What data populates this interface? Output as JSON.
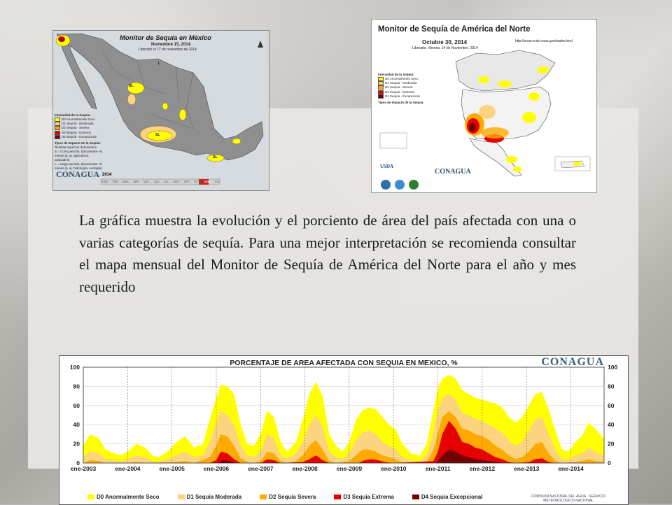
{
  "colors": {
    "d0": "#ffff00",
    "d1": "#fcd37f",
    "d2": "#ffaa00",
    "d3": "#e60000",
    "d4": "#730000"
  },
  "map_mexico": {
    "title": "Monitor de Sequía en México",
    "date": "Noviembre 15, 2014",
    "released": "Liberado el 17 de noviembre de 2014",
    "legend_heading": "Intensidad de la Sequía:",
    "legend": [
      "D0 Anormalmente Seco",
      "D1 Sequía - Moderada",
      "D2 Sequía - Severa",
      "D3 Sequía - Extrema",
      "D4 Sequía - Excepcional"
    ],
    "impact_heading": "Tipos de Impacto de la Sequía:",
    "impacts": [
      "Delimita impactos dominantes",
      "S = Corto periodo, típicamente <6 meses (p. ej. agricultura, pastizales)",
      "L = Largo periodo, típicamente >6 meses (p. ej. hidrología, ecología)"
    ],
    "year": "2014",
    "months": [
      "ENE",
      "FEB",
      "MAR",
      "ABR",
      "MAY",
      "JUN",
      "JUL",
      "AGO",
      "SEP",
      "OCT",
      "NOV",
      "DIC"
    ],
    "logo": "CONAGUA",
    "labels": [
      "SL",
      "SL",
      "L",
      "SL",
      "SL"
    ]
  },
  "map_na": {
    "title": "Monitor de Sequía de América del Norte",
    "date": "Octubre 30, 2014",
    "released": "Liberado: Viernes, 14 de Noviembre, 2014",
    "url": "http://www.ncdc.noaa.gov/nadm.html",
    "legend_heading": "Intensidad de la Sequía:",
    "legend": [
      "D0 Anormalmente Seco",
      "D1 Sequía - Moderada",
      "D2 Sequía - Severa",
      "D3 Sequía - Extrema",
      "D4 Sequía - Excepcional"
    ],
    "impact_heading": "Tipos de Impacto de la Sequía:",
    "logo": "CONAGUA",
    "logo_usda": "USDA"
  },
  "description": "La gráfica muestra la evolución y el porciento de área del país afectada con una o varias categorías de sequía. Para una mejor interpretación se recomienda consultar el mapa mensual del Monitor de Sequía de América del Norte para el año y mes requerido",
  "chart_data": {
    "type": "area",
    "title": "PORCENTAJE DE AREA AFECTADA CON SEQUIA EN MEXICO, %",
    "brand": "CONAGUA",
    "org": "COMISION NACIONAL DEL AGUA · SERVICIO METEOROLOGICO NACIONAL",
    "ylim": [
      0,
      100
    ],
    "yticks": [
      0,
      20,
      40,
      60,
      80,
      100
    ],
    "x_ticks": [
      "ene-2003",
      "ene-2004",
      "ene-2005",
      "ene-2006",
      "ene-2007",
      "ene-2008",
      "ene-2009",
      "ene-2010",
      "ene-2011",
      "ene-2012",
      "ene-2013",
      "ene-2014"
    ],
    "x_start": 2003.0,
    "x_end": 2014.75,
    "grid": true,
    "legend_position": "bottom",
    "series": [
      {
        "name": "D0 Anormalmente Seco",
        "color_key": "d0",
        "points": [
          [
            2003.0,
            18
          ],
          [
            2003.15,
            30
          ],
          [
            2003.35,
            26
          ],
          [
            2003.5,
            14
          ],
          [
            2003.7,
            10
          ],
          [
            2003.85,
            8
          ],
          [
            2004.0,
            12
          ],
          [
            2004.2,
            20
          ],
          [
            2004.4,
            16
          ],
          [
            2004.55,
            8
          ],
          [
            2004.7,
            6
          ],
          [
            2004.9,
            12
          ],
          [
            2005.1,
            22
          ],
          [
            2005.3,
            28
          ],
          [
            2005.5,
            16
          ],
          [
            2005.7,
            20
          ],
          [
            2005.85,
            45
          ],
          [
            2006.0,
            68
          ],
          [
            2006.1,
            82
          ],
          [
            2006.25,
            80
          ],
          [
            2006.4,
            72
          ],
          [
            2006.55,
            40
          ],
          [
            2006.7,
            20
          ],
          [
            2006.85,
            18
          ],
          [
            2007.0,
            30
          ],
          [
            2007.15,
            55
          ],
          [
            2007.3,
            48
          ],
          [
            2007.45,
            22
          ],
          [
            2007.6,
            12
          ],
          [
            2007.8,
            22
          ],
          [
            2007.95,
            45
          ],
          [
            2008.1,
            72
          ],
          [
            2008.25,
            85
          ],
          [
            2008.4,
            70
          ],
          [
            2008.55,
            30
          ],
          [
            2008.7,
            18
          ],
          [
            2008.85,
            12
          ],
          [
            2009.0,
            22
          ],
          [
            2009.15,
            45
          ],
          [
            2009.3,
            55
          ],
          [
            2009.45,
            58
          ],
          [
            2009.6,
            56
          ],
          [
            2009.75,
            48
          ],
          [
            2009.9,
            40
          ],
          [
            2010.05,
            35
          ],
          [
            2010.2,
            20
          ],
          [
            2010.4,
            10
          ],
          [
            2010.6,
            8
          ],
          [
            2010.75,
            20
          ],
          [
            2010.9,
            55
          ],
          [
            2011.0,
            78
          ],
          [
            2011.1,
            88
          ],
          [
            2011.25,
            92
          ],
          [
            2011.4,
            88
          ],
          [
            2011.55,
            76
          ],
          [
            2011.7,
            72
          ],
          [
            2011.85,
            68
          ],
          [
            2012.0,
            66
          ],
          [
            2012.15,
            64
          ],
          [
            2012.3,
            62
          ],
          [
            2012.45,
            58
          ],
          [
            2012.6,
            48
          ],
          [
            2012.75,
            42
          ],
          [
            2012.9,
            48
          ],
          [
            2013.05,
            60
          ],
          [
            2013.2,
            72
          ],
          [
            2013.35,
            74
          ],
          [
            2013.5,
            56
          ],
          [
            2013.65,
            34
          ],
          [
            2013.8,
            14
          ],
          [
            2013.95,
            12
          ],
          [
            2014.1,
            22
          ],
          [
            2014.25,
            28
          ],
          [
            2014.4,
            42
          ],
          [
            2014.55,
            36
          ],
          [
            2014.7,
            28
          ],
          [
            2014.75,
            26
          ]
        ]
      },
      {
        "name": "D1 Sequía Moderada",
        "color_key": "d1",
        "points": [
          [
            2003.0,
            6
          ],
          [
            2003.15,
            12
          ],
          [
            2003.35,
            10
          ],
          [
            2003.5,
            4
          ],
          [
            2003.7,
            3
          ],
          [
            2003.85,
            2
          ],
          [
            2004.0,
            4
          ],
          [
            2004.2,
            8
          ],
          [
            2004.4,
            6
          ],
          [
            2004.55,
            2
          ],
          [
            2004.7,
            1
          ],
          [
            2004.9,
            4
          ],
          [
            2005.1,
            8
          ],
          [
            2005.3,
            12
          ],
          [
            2005.5,
            6
          ],
          [
            2005.7,
            8
          ],
          [
            2005.85,
            22
          ],
          [
            2006.0,
            42
          ],
          [
            2006.1,
            55
          ],
          [
            2006.25,
            50
          ],
          [
            2006.4,
            40
          ],
          [
            2006.55,
            18
          ],
          [
            2006.7,
            8
          ],
          [
            2006.85,
            6
          ],
          [
            2007.0,
            12
          ],
          [
            2007.15,
            30
          ],
          [
            2007.3,
            26
          ],
          [
            2007.45,
            8
          ],
          [
            2007.6,
            4
          ],
          [
            2007.8,
            10
          ],
          [
            2007.95,
            22
          ],
          [
            2008.1,
            40
          ],
          [
            2008.25,
            50
          ],
          [
            2008.4,
            38
          ],
          [
            2008.55,
            12
          ],
          [
            2008.7,
            6
          ],
          [
            2008.85,
            4
          ],
          [
            2009.0,
            10
          ],
          [
            2009.15,
            24
          ],
          [
            2009.3,
            32
          ],
          [
            2009.45,
            34
          ],
          [
            2009.6,
            30
          ],
          [
            2009.75,
            22
          ],
          [
            2009.9,
            18
          ],
          [
            2010.05,
            14
          ],
          [
            2010.2,
            6
          ],
          [
            2010.4,
            2
          ],
          [
            2010.6,
            2
          ],
          [
            2010.75,
            8
          ],
          [
            2010.9,
            32
          ],
          [
            2011.0,
            55
          ],
          [
            2011.1,
            68
          ],
          [
            2011.25,
            72
          ],
          [
            2011.4,
            66
          ],
          [
            2011.55,
            52
          ],
          [
            2011.7,
            50
          ],
          [
            2011.85,
            46
          ],
          [
            2012.0,
            44
          ],
          [
            2012.15,
            40
          ],
          [
            2012.3,
            36
          ],
          [
            2012.45,
            32
          ],
          [
            2012.6,
            24
          ],
          [
            2012.75,
            18
          ],
          [
            2012.9,
            22
          ],
          [
            2013.05,
            34
          ],
          [
            2013.2,
            46
          ],
          [
            2013.35,
            48
          ],
          [
            2013.5,
            30
          ],
          [
            2013.65,
            14
          ],
          [
            2013.8,
            4
          ],
          [
            2013.95,
            3
          ],
          [
            2014.1,
            8
          ],
          [
            2014.25,
            10
          ],
          [
            2014.4,
            16
          ],
          [
            2014.55,
            12
          ],
          [
            2014.7,
            8
          ],
          [
            2014.75,
            7
          ]
        ]
      },
      {
        "name": "D2 Sequía Severa",
        "color_key": "d2",
        "points": [
          [
            2003.0,
            0
          ],
          [
            2003.15,
            3
          ],
          [
            2003.35,
            2
          ],
          [
            2003.5,
            0
          ],
          [
            2004.0,
            0
          ],
          [
            2004.2,
            1
          ],
          [
            2004.4,
            0
          ],
          [
            2005.1,
            1
          ],
          [
            2005.3,
            2
          ],
          [
            2005.5,
            0
          ],
          [
            2005.85,
            6
          ],
          [
            2006.0,
            18
          ],
          [
            2006.1,
            30
          ],
          [
            2006.25,
            28
          ],
          [
            2006.4,
            18
          ],
          [
            2006.55,
            5
          ],
          [
            2006.7,
            1
          ],
          [
            2006.85,
            0
          ],
          [
            2007.0,
            2
          ],
          [
            2007.15,
            12
          ],
          [
            2007.3,
            10
          ],
          [
            2007.45,
            2
          ],
          [
            2007.6,
            0
          ],
          [
            2007.8,
            2
          ],
          [
            2007.95,
            8
          ],
          [
            2008.1,
            18
          ],
          [
            2008.25,
            24
          ],
          [
            2008.4,
            14
          ],
          [
            2008.55,
            2
          ],
          [
            2008.7,
            0
          ],
          [
            2009.0,
            2
          ],
          [
            2009.15,
            8
          ],
          [
            2009.3,
            14
          ],
          [
            2009.45,
            14
          ],
          [
            2009.6,
            12
          ],
          [
            2009.75,
            8
          ],
          [
            2009.9,
            6
          ],
          [
            2010.05,
            4
          ],
          [
            2010.2,
            1
          ],
          [
            2010.4,
            0
          ],
          [
            2010.75,
            1
          ],
          [
            2010.9,
            14
          ],
          [
            2011.0,
            32
          ],
          [
            2011.1,
            48
          ],
          [
            2011.25,
            54
          ],
          [
            2011.4,
            48
          ],
          [
            2011.55,
            36
          ],
          [
            2011.7,
            34
          ],
          [
            2011.85,
            30
          ],
          [
            2012.0,
            28
          ],
          [
            2012.15,
            24
          ],
          [
            2012.3,
            18
          ],
          [
            2012.45,
            14
          ],
          [
            2012.6,
            8
          ],
          [
            2012.75,
            4
          ],
          [
            2012.9,
            6
          ],
          [
            2013.05,
            12
          ],
          [
            2013.2,
            20
          ],
          [
            2013.35,
            22
          ],
          [
            2013.5,
            10
          ],
          [
            2013.65,
            2
          ],
          [
            2013.8,
            0
          ],
          [
            2014.1,
            1
          ],
          [
            2014.25,
            2
          ],
          [
            2014.4,
            4
          ],
          [
            2014.55,
            2
          ],
          [
            2014.75,
            1
          ]
        ]
      },
      {
        "name": "D3 Sequía Extrema",
        "color_key": "d3",
        "points": [
          [
            2003.0,
            0
          ],
          [
            2005.85,
            0
          ],
          [
            2006.0,
            3
          ],
          [
            2006.1,
            12
          ],
          [
            2006.25,
            10
          ],
          [
            2006.4,
            4
          ],
          [
            2006.55,
            0
          ],
          [
            2007.0,
            0
          ],
          [
            2007.15,
            4
          ],
          [
            2007.3,
            3
          ],
          [
            2007.45,
            0
          ],
          [
            2007.95,
            1
          ],
          [
            2008.1,
            4
          ],
          [
            2008.25,
            8
          ],
          [
            2008.4,
            3
          ],
          [
            2008.55,
            0
          ],
          [
            2009.2,
            0
          ],
          [
            2009.35,
            3
          ],
          [
            2009.5,
            4
          ],
          [
            2009.65,
            3
          ],
          [
            2009.8,
            1
          ],
          [
            2010.0,
            0
          ],
          [
            2010.9,
            2
          ],
          [
            2011.0,
            12
          ],
          [
            2011.1,
            30
          ],
          [
            2011.25,
            44
          ],
          [
            2011.4,
            36
          ],
          [
            2011.55,
            22
          ],
          [
            2011.7,
            20
          ],
          [
            2011.85,
            16
          ],
          [
            2012.0,
            14
          ],
          [
            2012.15,
            10
          ],
          [
            2012.3,
            6
          ],
          [
            2012.45,
            4
          ],
          [
            2012.6,
            1
          ],
          [
            2012.75,
            0
          ],
          [
            2013.05,
            1
          ],
          [
            2013.2,
            4
          ],
          [
            2013.35,
            5
          ],
          [
            2013.5,
            1
          ],
          [
            2013.65,
            0
          ],
          [
            2014.75,
            0
          ]
        ]
      },
      {
        "name": "D4 Sequía Excepcional",
        "color_key": "d4",
        "points": [
          [
            2003.0,
            0
          ],
          [
            2006.05,
            0
          ],
          [
            2006.15,
            3
          ],
          [
            2006.3,
            2
          ],
          [
            2006.45,
            0
          ],
          [
            2010.95,
            0
          ],
          [
            2011.1,
            8
          ],
          [
            2011.25,
            14
          ],
          [
            2011.4,
            12
          ],
          [
            2011.55,
            8
          ],
          [
            2011.7,
            6
          ],
          [
            2011.85,
            4
          ],
          [
            2012.0,
            3
          ],
          [
            2012.15,
            2
          ],
          [
            2012.3,
            1
          ],
          [
            2012.45,
            0
          ],
          [
            2014.75,
            0
          ]
        ]
      }
    ]
  }
}
